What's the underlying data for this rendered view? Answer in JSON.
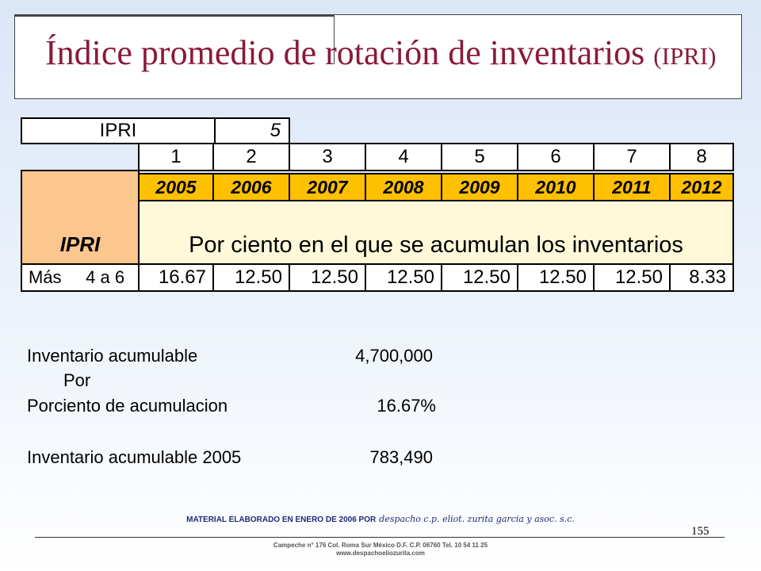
{
  "title": {
    "main": "Índice promedio de rotación de inventarios",
    "suffix": "(IPRI)"
  },
  "table": {
    "ipri_label": "IPRI",
    "ipri_value": "5",
    "periods": [
      "1",
      "2",
      "3",
      "4",
      "5",
      "6",
      "7",
      "8"
    ],
    "years": [
      "2005",
      "2006",
      "2007",
      "2008",
      "2009",
      "2010",
      "2011",
      "2012"
    ],
    "side_label": "IPRI",
    "header_text": "Por ciento en el que se acumulan los inventarios",
    "row_label": "Más     4 a 6",
    "percentages": [
      "16.67",
      "12.50",
      "12.50",
      "12.50",
      "12.50",
      "12.50",
      "12.50",
      "8.33"
    ]
  },
  "calculation": {
    "line1_label": "Inventario acumulable",
    "line1_value": "4,700,000",
    "operator": "Por",
    "line2_label": "Porciento de acumulacion",
    "line2_value": "16.67%",
    "line3_label": "Inventario acumulable 2005",
    "line3_value": "783,490"
  },
  "footer": {
    "credit": "MATERIAL ELABORADO EN ENERO DE 2006 POR",
    "author": "despacho c.p. eliot. zurita garcia y asoc. s.c.",
    "page_number": "155",
    "address": "Campeche n° 176 Col. Roma Sur México D.F. C.P. 06760 Tel. 10 54 11 25",
    "website": "www.despachoeliozurita.com"
  }
}
